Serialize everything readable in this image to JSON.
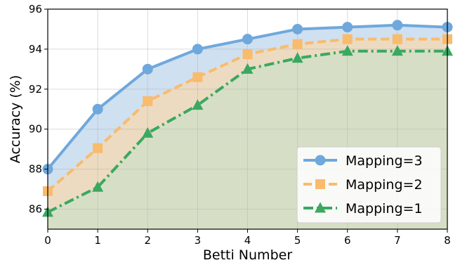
{
  "chart_data": {
    "type": "line",
    "xlabel": "Betti Number",
    "ylabel": "Accuracy (%)",
    "x": [
      0,
      1,
      2,
      3,
      4,
      5,
      6,
      7,
      8
    ],
    "xlim": [
      0,
      8
    ],
    "ylim": [
      85,
      96
    ],
    "yticks": [
      86,
      88,
      90,
      92,
      94,
      96
    ],
    "grid": true,
    "legend_position": "lower-right",
    "series": [
      {
        "name": "Mapping=3",
        "values": [
          88.0,
          91.0,
          93.0,
          94.0,
          94.5,
          95.0,
          95.1,
          95.2,
          95.1
        ],
        "color": "#6fa8dc",
        "fill": "#cfe0f1",
        "marker": "circle",
        "dash": "solid"
      },
      {
        "name": "Mapping=2",
        "values": [
          86.9,
          89.05,
          91.4,
          92.6,
          93.75,
          94.25,
          94.5,
          94.5,
          94.5
        ],
        "color": "#f9bb6c",
        "fill": "#ecdbc1",
        "marker": "square",
        "dash": "dash"
      },
      {
        "name": "Mapping=1",
        "values": [
          85.85,
          87.1,
          89.8,
          91.2,
          93.0,
          93.55,
          93.9,
          93.9,
          93.9
        ],
        "color": "#3aa860",
        "fill": "#d6dfc6",
        "marker": "triangle",
        "dash": "dashdot"
      }
    ]
  }
}
